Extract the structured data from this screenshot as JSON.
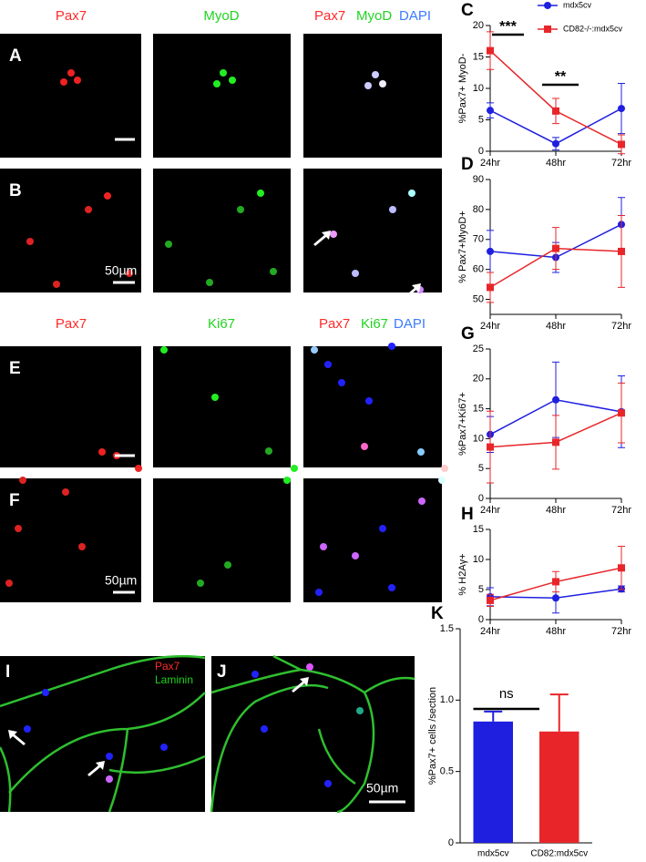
{
  "micrographs": {
    "headers_1": [
      "Pax7",
      "MyoD",
      "Pax7",
      "MyoD",
      "DAPI"
    ],
    "headers_2": [
      "Pax7",
      "Ki67",
      "Pax7",
      "Ki67",
      "DAPI"
    ],
    "letters": [
      "A",
      "B",
      "E",
      "F",
      "I",
      "J"
    ],
    "scale_bars": [
      "50µm",
      "50µm",
      "50µm"
    ],
    "stain_legend": [
      "Pax7",
      "Laminin"
    ]
  },
  "chart_data": [
    {
      "type": "line",
      "letter": "C",
      "y_label": "%Pax7+ MyoD-",
      "categories": [
        "24hr",
        "48hr",
        "72hr"
      ],
      "ylim": [
        0,
        20
      ],
      "yticks": [
        0,
        5,
        10,
        15,
        20
      ],
      "legend": "top",
      "series": [
        {
          "name": "mdx5cv",
          "color": "#1f1fe0",
          "marker": "circle",
          "values": [
            6.5,
            1.2,
            6.8
          ],
          "errors": [
            1.2,
            1.0,
            4.0
          ]
        },
        {
          "name": "CD82-/-:mdx5cv",
          "color": "#e8262a",
          "marker": "square",
          "values": [
            16,
            6.4,
            1.1
          ],
          "errors": [
            3,
            2,
            1.5
          ]
        }
      ],
      "annotations": [
        "***",
        "**"
      ]
    },
    {
      "type": "line",
      "letter": "D",
      "y_label": "% Pax7+MyoD+",
      "categories": [
        "24hr",
        "48hr",
        "72hr"
      ],
      "ylim": [
        45,
        90
      ],
      "yticks": [
        50,
        60,
        70,
        80,
        90
      ],
      "series": [
        {
          "color": "#1f1fe0",
          "marker": "circle",
          "values": [
            66,
            64,
            75
          ],
          "errors": [
            7,
            5,
            9
          ]
        },
        {
          "color": "#e8262a",
          "marker": "square",
          "values": [
            54,
            67,
            66
          ],
          "errors": [
            5,
            7,
            12
          ]
        }
      ]
    },
    {
      "type": "line",
      "letter": "G",
      "y_label": "%Pax7+Ki67+",
      "categories": [
        "24hr",
        "48hr",
        "72hr"
      ],
      "ylim": [
        0,
        25
      ],
      "yticks": [
        0,
        5,
        10,
        15,
        20,
        25
      ],
      "series": [
        {
          "color": "#1f1fe0",
          "marker": "circle",
          "values": [
            10.7,
            16.5,
            14.5
          ],
          "errors": [
            3,
            6.3,
            6
          ]
        },
        {
          "color": "#e8262a",
          "marker": "square",
          "values": [
            8.6,
            9.4,
            14.3
          ],
          "errors": [
            6,
            4.5,
            5
          ]
        }
      ]
    },
    {
      "type": "line",
      "letter": "H",
      "y_label": "% H2Aγ+",
      "categories": [
        "24hr",
        "48hr",
        "72hr"
      ],
      "ylim": [
        0,
        15
      ],
      "yticks": [
        0,
        5,
        10,
        15
      ],
      "series": [
        {
          "color": "#1f1fe0",
          "marker": "circle",
          "values": [
            3.8,
            3.6,
            5.1
          ],
          "errors": [
            1.5,
            2.5,
            0.5
          ]
        },
        {
          "color": "#e8262a",
          "marker": "square",
          "values": [
            3.2,
            6.3,
            8.6
          ],
          "errors": [
            1,
            1.7,
            3.6
          ]
        }
      ]
    },
    {
      "type": "bar",
      "letter": "K",
      "y_label": "%Pax7+ cells /section",
      "categories": [
        "mdx5cv",
        "CD82:mdx5cv"
      ],
      "values": [
        0.85,
        0.78
      ],
      "errors": [
        0.07,
        0.26
      ],
      "colors": [
        "#1f1fe0",
        "#e8262a"
      ],
      "ylim": [
        0,
        1.5
      ],
      "yticks": [
        0,
        0.5,
        {
          "value": 1,
          "label": "1.0"
        },
        1.5
      ],
      "annotations": [
        "ns"
      ]
    }
  ]
}
